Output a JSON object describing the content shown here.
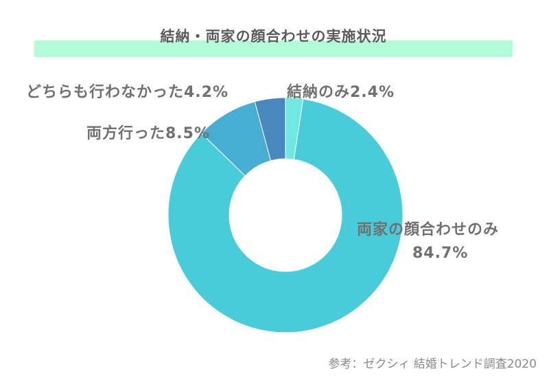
{
  "chart_data": {
    "type": "pie",
    "title": "結納・両家の顔合わせの実施状況",
    "categories": [
      "結納のみ",
      "両家の顔合わせのみ",
      "両方行った",
      "どちらも行わなかった"
    ],
    "values": [
      2.4,
      84.7,
      8.5,
      4.2
    ],
    "slice_labels": [
      "結納のみ2.4%",
      "両家の顔合わせのみ",
      "両方行った8.5%",
      "どちらも行わなかった4.2%"
    ],
    "main_value_label": "84.7%",
    "colors": [
      "#6ee8e0",
      "#48ccda",
      "#47aed3",
      "#4888bf"
    ],
    "donut": true
  },
  "source": "参考：ゼクシィ 結婚トレンド調査2020"
}
